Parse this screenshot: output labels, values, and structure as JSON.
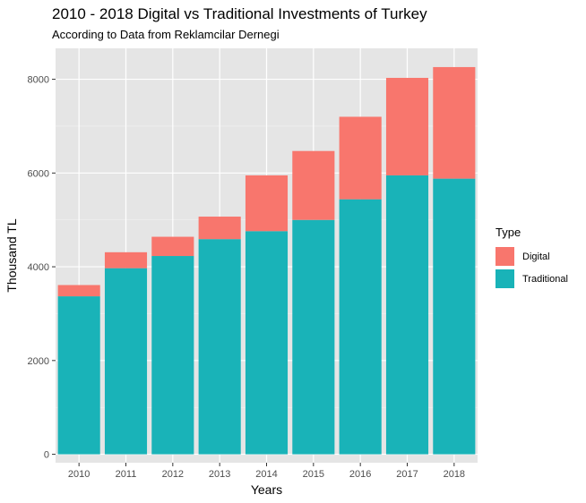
{
  "colors": {
    "panel": "#E5E5E5",
    "grid_major": "#FFFFFF",
    "digital": "#F8766D",
    "traditional": "#19B3B8",
    "axis_text": "#4D4D4D"
  },
  "chart_data": {
    "type": "bar",
    "stacked": true,
    "title": "2010 - 2018 Digital vs Traditional Investments of Turkey",
    "subtitle": "According to Data from Reklamcilar Dernegi",
    "xlabel": "Years",
    "ylabel": "Thousand TL",
    "categories": [
      "2010",
      "2011",
      "2012",
      "2013",
      "2014",
      "2015",
      "2016",
      "2017",
      "2018"
    ],
    "series": [
      {
        "name": "Traditional",
        "values": [
          3370,
          3970,
          4230,
          4590,
          4760,
          5000,
          5440,
          5950,
          5880
        ]
      },
      {
        "name": "Digital",
        "values": [
          240,
          340,
          410,
          480,
          1190,
          1470,
          1760,
          2080,
          2380
        ]
      }
    ],
    "yticks": [
      0,
      2000,
      4000,
      6000,
      8000
    ],
    "ylim": [
      -180,
      8660
    ],
    "grid": true,
    "legend": {
      "title": "Type",
      "position": "right",
      "entries": [
        "Digital",
        "Traditional"
      ]
    }
  }
}
